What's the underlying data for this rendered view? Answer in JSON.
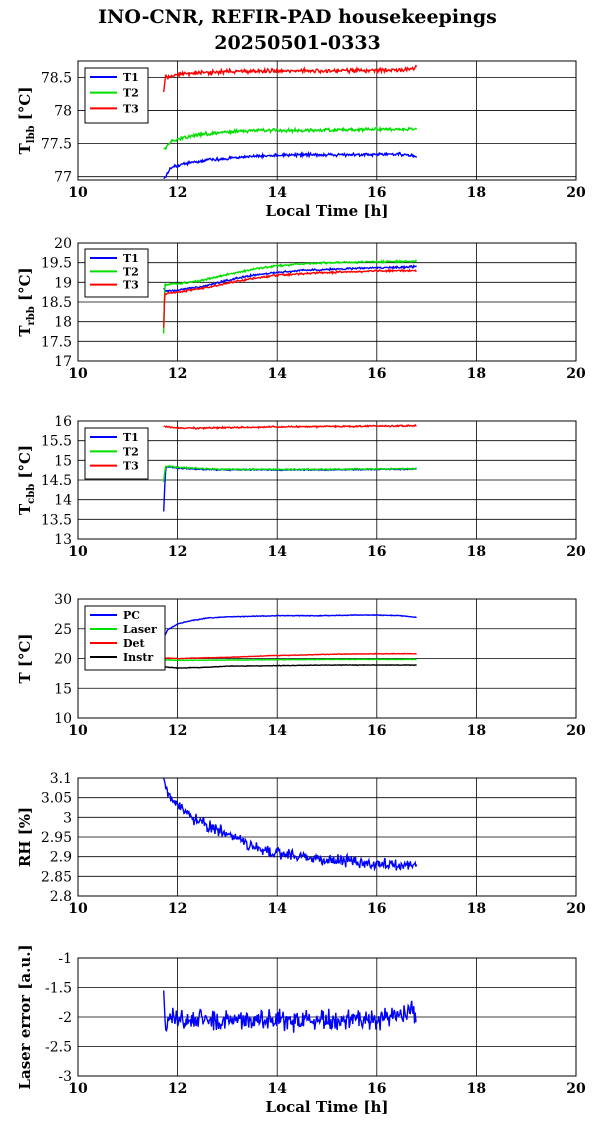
{
  "title": {
    "line1": "INO-CNR, REFIR-PAD housekeepings",
    "line2": "20250501-0333"
  },
  "chart_data": [
    {
      "id": "lbb",
      "type": "line",
      "ylabel": "T_lbb [°C]",
      "xlabel": "Local Time [h]",
      "xlim": [
        10,
        20
      ],
      "ylim": [
        76.95,
        78.75
      ],
      "xticks": [
        10,
        12,
        14,
        16,
        18,
        20
      ],
      "yticks": [
        77,
        77.5,
        78,
        78.5
      ],
      "ytick_labels": [
        "77",
        "77.5",
        "78",
        "78.5"
      ],
      "grid": true,
      "legend": "top-left",
      "series": [
        {
          "name": "T1",
          "color": "#0000ff",
          "x": [
            11.72,
            11.78,
            11.85,
            12.0,
            12.3,
            12.6,
            13.0,
            13.5,
            14.0,
            14.5,
            15.0,
            15.5,
            16.0,
            16.5,
            16.8
          ],
          "y": [
            76.97,
            77.02,
            77.12,
            77.17,
            77.22,
            77.25,
            77.28,
            77.31,
            77.32,
            77.33,
            77.33,
            77.33,
            77.34,
            77.34,
            77.31
          ],
          "noise": 0.03
        },
        {
          "name": "T2",
          "color": "#00e000",
          "x": [
            11.72,
            11.78,
            11.85,
            12.0,
            12.3,
            12.6,
            13.0,
            13.5,
            14.0,
            14.5,
            15.0,
            15.5,
            16.0,
            16.5,
            16.8
          ],
          "y": [
            77.42,
            77.45,
            77.52,
            77.57,
            77.62,
            77.65,
            77.68,
            77.7,
            77.7,
            77.7,
            77.71,
            77.71,
            77.72,
            77.72,
            77.72
          ],
          "noise": 0.03
        },
        {
          "name": "T3",
          "color": "#ff0000",
          "x": [
            11.72,
            11.76,
            11.8,
            11.9,
            12.0,
            12.3,
            12.6,
            13.0,
            13.5,
            14.0,
            14.5,
            15.0,
            15.5,
            16.0,
            16.5,
            16.8
          ],
          "y": [
            78.28,
            78.55,
            78.48,
            78.52,
            78.55,
            78.57,
            78.58,
            78.59,
            78.6,
            78.6,
            78.6,
            78.6,
            78.61,
            78.61,
            78.62,
            78.64
          ],
          "noise": 0.04
        }
      ]
    },
    {
      "id": "rbb",
      "type": "line",
      "ylabel": "T_rbb [°C]",
      "xlabel": "",
      "xlim": [
        10,
        20
      ],
      "ylim": [
        17,
        20
      ],
      "xticks": [
        10,
        12,
        14,
        16,
        18,
        20
      ],
      "yticks": [
        17,
        17.5,
        18,
        18.5,
        19,
        19.5,
        20
      ],
      "ytick_labels": [
        "17",
        "17.5",
        "18",
        "18.5",
        "19",
        "19.5",
        "20"
      ],
      "grid": true,
      "legend": "top-left",
      "series": [
        {
          "name": "T1",
          "color": "#0000ff",
          "x": [
            11.72,
            11.75,
            11.8,
            12.0,
            12.5,
            13.0,
            13.5,
            14.0,
            14.5,
            15.0,
            15.5,
            16.0,
            16.5,
            16.8
          ],
          "y": [
            18.85,
            18.8,
            18.78,
            18.8,
            18.9,
            19.05,
            19.18,
            19.25,
            19.3,
            19.33,
            19.35,
            19.37,
            19.38,
            19.4
          ],
          "noise": 0.03
        },
        {
          "name": "T2",
          "color": "#00e000",
          "x": [
            11.72,
            11.74,
            11.76,
            11.8,
            12.0,
            12.5,
            13.0,
            13.5,
            14.0,
            14.5,
            15.0,
            15.5,
            16.0,
            16.5,
            16.8
          ],
          "y": [
            17.7,
            18.95,
            18.95,
            18.95,
            18.97,
            19.05,
            19.2,
            19.33,
            19.42,
            19.47,
            19.5,
            19.51,
            19.52,
            19.53,
            19.53
          ],
          "noise": 0.03
        },
        {
          "name": "T3",
          "color": "#ff0000",
          "x": [
            11.72,
            11.74,
            11.76,
            11.8,
            12.0,
            12.5,
            13.0,
            13.5,
            14.0,
            14.5,
            15.0,
            15.5,
            16.0,
            16.5,
            16.8
          ],
          "y": [
            17.85,
            18.72,
            18.7,
            18.72,
            18.75,
            18.85,
            18.98,
            19.1,
            19.18,
            19.22,
            19.25,
            19.27,
            19.29,
            19.3,
            19.3
          ],
          "noise": 0.03
        }
      ]
    },
    {
      "id": "cbb",
      "type": "line",
      "ylabel": "T_cbb [°C]",
      "xlabel": "",
      "xlim": [
        10,
        20
      ],
      "ylim": [
        13,
        16
      ],
      "xticks": [
        10,
        12,
        14,
        16,
        18,
        20
      ],
      "yticks": [
        13,
        13.5,
        14,
        14.5,
        15,
        15.5,
        16
      ],
      "ytick_labels": [
        "13",
        "13.5",
        "14",
        "14.5",
        "15",
        "15.5",
        "16"
      ],
      "grid": true,
      "legend": "top-left",
      "series": [
        {
          "name": "T1",
          "color": "#0000ff",
          "x": [
            11.72,
            11.74,
            11.76,
            11.8,
            12.0,
            12.5,
            13.0,
            14.0,
            15.0,
            16.0,
            16.8
          ],
          "y": [
            13.7,
            14.3,
            14.8,
            14.85,
            14.8,
            14.77,
            14.76,
            14.76,
            14.76,
            14.77,
            14.78
          ],
          "noise": 0.02
        },
        {
          "name": "T2",
          "color": "#00e000",
          "x": [
            11.72,
            11.74,
            11.76,
            11.8,
            12.0,
            12.5,
            13.0,
            14.0,
            15.0,
            16.0,
            16.8
          ],
          "y": [
            14.45,
            14.7,
            14.85,
            14.85,
            14.82,
            14.79,
            14.77,
            14.77,
            14.77,
            14.78,
            14.79
          ],
          "noise": 0.02
        },
        {
          "name": "T3",
          "color": "#ff0000",
          "x": [
            11.72,
            11.8,
            12.0,
            12.5,
            13.0,
            14.0,
            15.0,
            16.0,
            16.8
          ],
          "y": [
            15.87,
            15.85,
            15.82,
            15.82,
            15.83,
            15.85,
            15.86,
            15.87,
            15.88
          ],
          "noise": 0.025
        }
      ]
    },
    {
      "id": "temps",
      "type": "line",
      "ylabel": "T [°C]",
      "xlabel": "",
      "xlim": [
        10,
        20
      ],
      "ylim": [
        10,
        30
      ],
      "xticks": [
        10,
        12,
        14,
        16,
        18,
        20
      ],
      "yticks": [
        10,
        15,
        20,
        25,
        30
      ],
      "ytick_labels": [
        "10",
        "15",
        "20",
        "25",
        "30"
      ],
      "grid": true,
      "legend": "top-left",
      "series": [
        {
          "name": "PC",
          "color": "#0000ff",
          "x": [
            11.72,
            11.8,
            12.0,
            12.3,
            12.6,
            13.0,
            13.5,
            14.0,
            14.5,
            15.0,
            15.5,
            16.0,
            16.5,
            16.8
          ],
          "y": [
            23.5,
            24.8,
            25.8,
            26.4,
            26.8,
            27.0,
            27.1,
            27.2,
            27.2,
            27.2,
            27.3,
            27.3,
            27.2,
            26.9
          ],
          "noise": 0.08
        },
        {
          "name": "Laser",
          "color": "#00e000",
          "x": [
            11.72,
            12.0,
            13.0,
            14.0,
            15.0,
            16.0,
            16.8
          ],
          "y": [
            19.8,
            19.7,
            19.75,
            19.8,
            19.85,
            19.85,
            19.85
          ],
          "noise": 0.06
        },
        {
          "name": "Det",
          "color": "#ff0000",
          "x": [
            11.72,
            12.0,
            13.0,
            14.0,
            15.0,
            16.0,
            16.8
          ],
          "y": [
            20.1,
            20.0,
            20.2,
            20.5,
            20.7,
            20.8,
            20.8
          ],
          "noise": 0.06
        },
        {
          "name": "Instr",
          "color": "#000000",
          "x": [
            11.72,
            12.0,
            12.5,
            13.0,
            14.0,
            15.0,
            16.0,
            16.8
          ],
          "y": [
            18.6,
            18.4,
            18.5,
            18.7,
            18.8,
            18.9,
            18.9,
            18.9
          ],
          "noise": 0.06
        }
      ]
    },
    {
      "id": "rh",
      "type": "line",
      "ylabel": "RH [%]",
      "xlabel": "",
      "xlim": [
        10,
        20
      ],
      "ylim": [
        2.8,
        3.1
      ],
      "xticks": [
        10,
        12,
        14,
        16,
        18,
        20
      ],
      "yticks": [
        2.8,
        2.85,
        2.9,
        2.95,
        3.0,
        3.05,
        3.1
      ],
      "ytick_labels": [
        "2.8",
        "2.85",
        "2.9",
        "2.95",
        "3",
        "3.05",
        "3.1"
      ],
      "grid": true,
      "legend": "none",
      "series": [
        {
          "name": "",
          "color": "#0000ff",
          "x": [
            11.72,
            11.8,
            12.0,
            12.3,
            12.6,
            13.0,
            13.3,
            13.6,
            14.0,
            14.5,
            15.0,
            15.5,
            16.0,
            16.5,
            16.8
          ],
          "y": [
            3.1,
            3.06,
            3.03,
            3.0,
            2.98,
            2.96,
            2.94,
            2.92,
            2.91,
            2.9,
            2.89,
            2.89,
            2.88,
            2.88,
            2.88
          ],
          "noise": 0.018
        }
      ]
    },
    {
      "id": "laser",
      "type": "line",
      "ylabel": "Laser error [a.u.]",
      "xlabel": "Local Time [h]",
      "xlim": [
        10,
        20
      ],
      "ylim": [
        -3,
        -1
      ],
      "xticks": [
        10,
        12,
        14,
        16,
        18,
        20
      ],
      "yticks": [
        -3,
        -2.5,
        -2,
        -1.5,
        -1
      ],
      "ytick_labels": [
        "-3",
        "-2.5",
        "-2",
        "-1.5",
        "-1"
      ],
      "grid": true,
      "legend": "none",
      "series": [
        {
          "name": "",
          "color": "#0000ff",
          "x": [
            11.72,
            11.75,
            11.8,
            12.0,
            13.0,
            14.0,
            15.0,
            16.0,
            16.8
          ],
          "y": [
            -1.55,
            -2.1,
            -2.0,
            -2.05,
            -2.05,
            -2.05,
            -2.05,
            -2.05,
            -1.9
          ],
          "noise": 0.22
        }
      ]
    }
  ]
}
